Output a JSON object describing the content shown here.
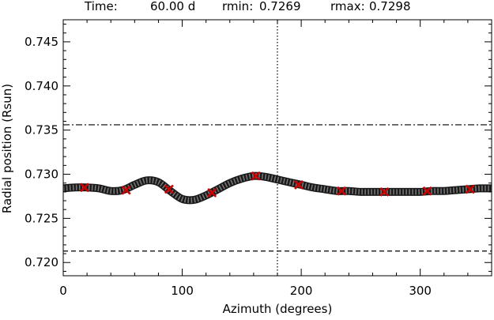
{
  "header": {
    "time_label": "Time:",
    "time_value": "60.00 d",
    "rmin_label": "rmin:",
    "rmin_value": "0.7269",
    "rmax_label": "rmax:",
    "rmax_value": "0.7298"
  },
  "chart_data": {
    "type": "line",
    "title": "",
    "xlabel": "Azimuth (degrees)",
    "ylabel": "Radial position (Rsun)",
    "xlim": [
      0,
      360
    ],
    "ylim": [
      0.7185,
      0.7475
    ],
    "x_ticks": [
      0,
      100,
      200,
      300
    ],
    "x_tick_labels": [
      "0",
      "100",
      "200",
      "300"
    ],
    "y_ticks": [
      0.72,
      0.725,
      0.73,
      0.735,
      0.74,
      0.745
    ],
    "y_tick_labels": [
      "0.720",
      "0.725",
      "0.730",
      "0.735",
      "0.740",
      "0.745"
    ],
    "grid": false,
    "colors": {
      "curve": "#1a1a1a",
      "curve_texture": "#9a9a9a",
      "markers": "#cc0000",
      "axes": "#000000"
    },
    "series": [
      {
        "style": "thick-solid",
        "x": [
          0,
          10,
          20,
          30,
          40,
          50,
          60,
          70,
          80,
          90,
          100,
          110,
          120,
          130,
          140,
          150,
          160,
          170,
          180,
          190,
          200,
          210,
          220,
          230,
          240,
          250,
          260,
          270,
          280,
          290,
          300,
          310,
          320,
          330,
          340,
          350,
          360
        ],
        "y": [
          0.7284,
          0.7285,
          0.7285,
          0.7284,
          0.7281,
          0.7282,
          0.7288,
          0.7293,
          0.7291,
          0.7281,
          0.7272,
          0.7271,
          0.7276,
          0.7283,
          0.729,
          0.7295,
          0.7298,
          0.7297,
          0.7294,
          0.7291,
          0.7288,
          0.7285,
          0.7283,
          0.7281,
          0.7281,
          0.728,
          0.728,
          0.728,
          0.728,
          0.728,
          0.728,
          0.7281,
          0.7281,
          0.7282,
          0.7283,
          0.7284,
          0.7284
        ]
      },
      {
        "style": "markers-x",
        "x": [
          18,
          53,
          89,
          125,
          162,
          198,
          234,
          270,
          306,
          342
        ],
        "y": [
          0.7285,
          0.7282,
          0.7283,
          0.7279,
          0.7298,
          0.7288,
          0.7281,
          0.728,
          0.7281,
          0.7283
        ]
      },
      {
        "style": "dash-dot",
        "x": [
          0,
          360
        ],
        "y": [
          0.7356,
          0.7356
        ]
      },
      {
        "style": "dashed",
        "x": [
          0,
          360
        ],
        "y": [
          0.7213,
          0.7213
        ]
      }
    ],
    "vlines": [
      {
        "x": 180,
        "style": "dotted"
      }
    ]
  }
}
